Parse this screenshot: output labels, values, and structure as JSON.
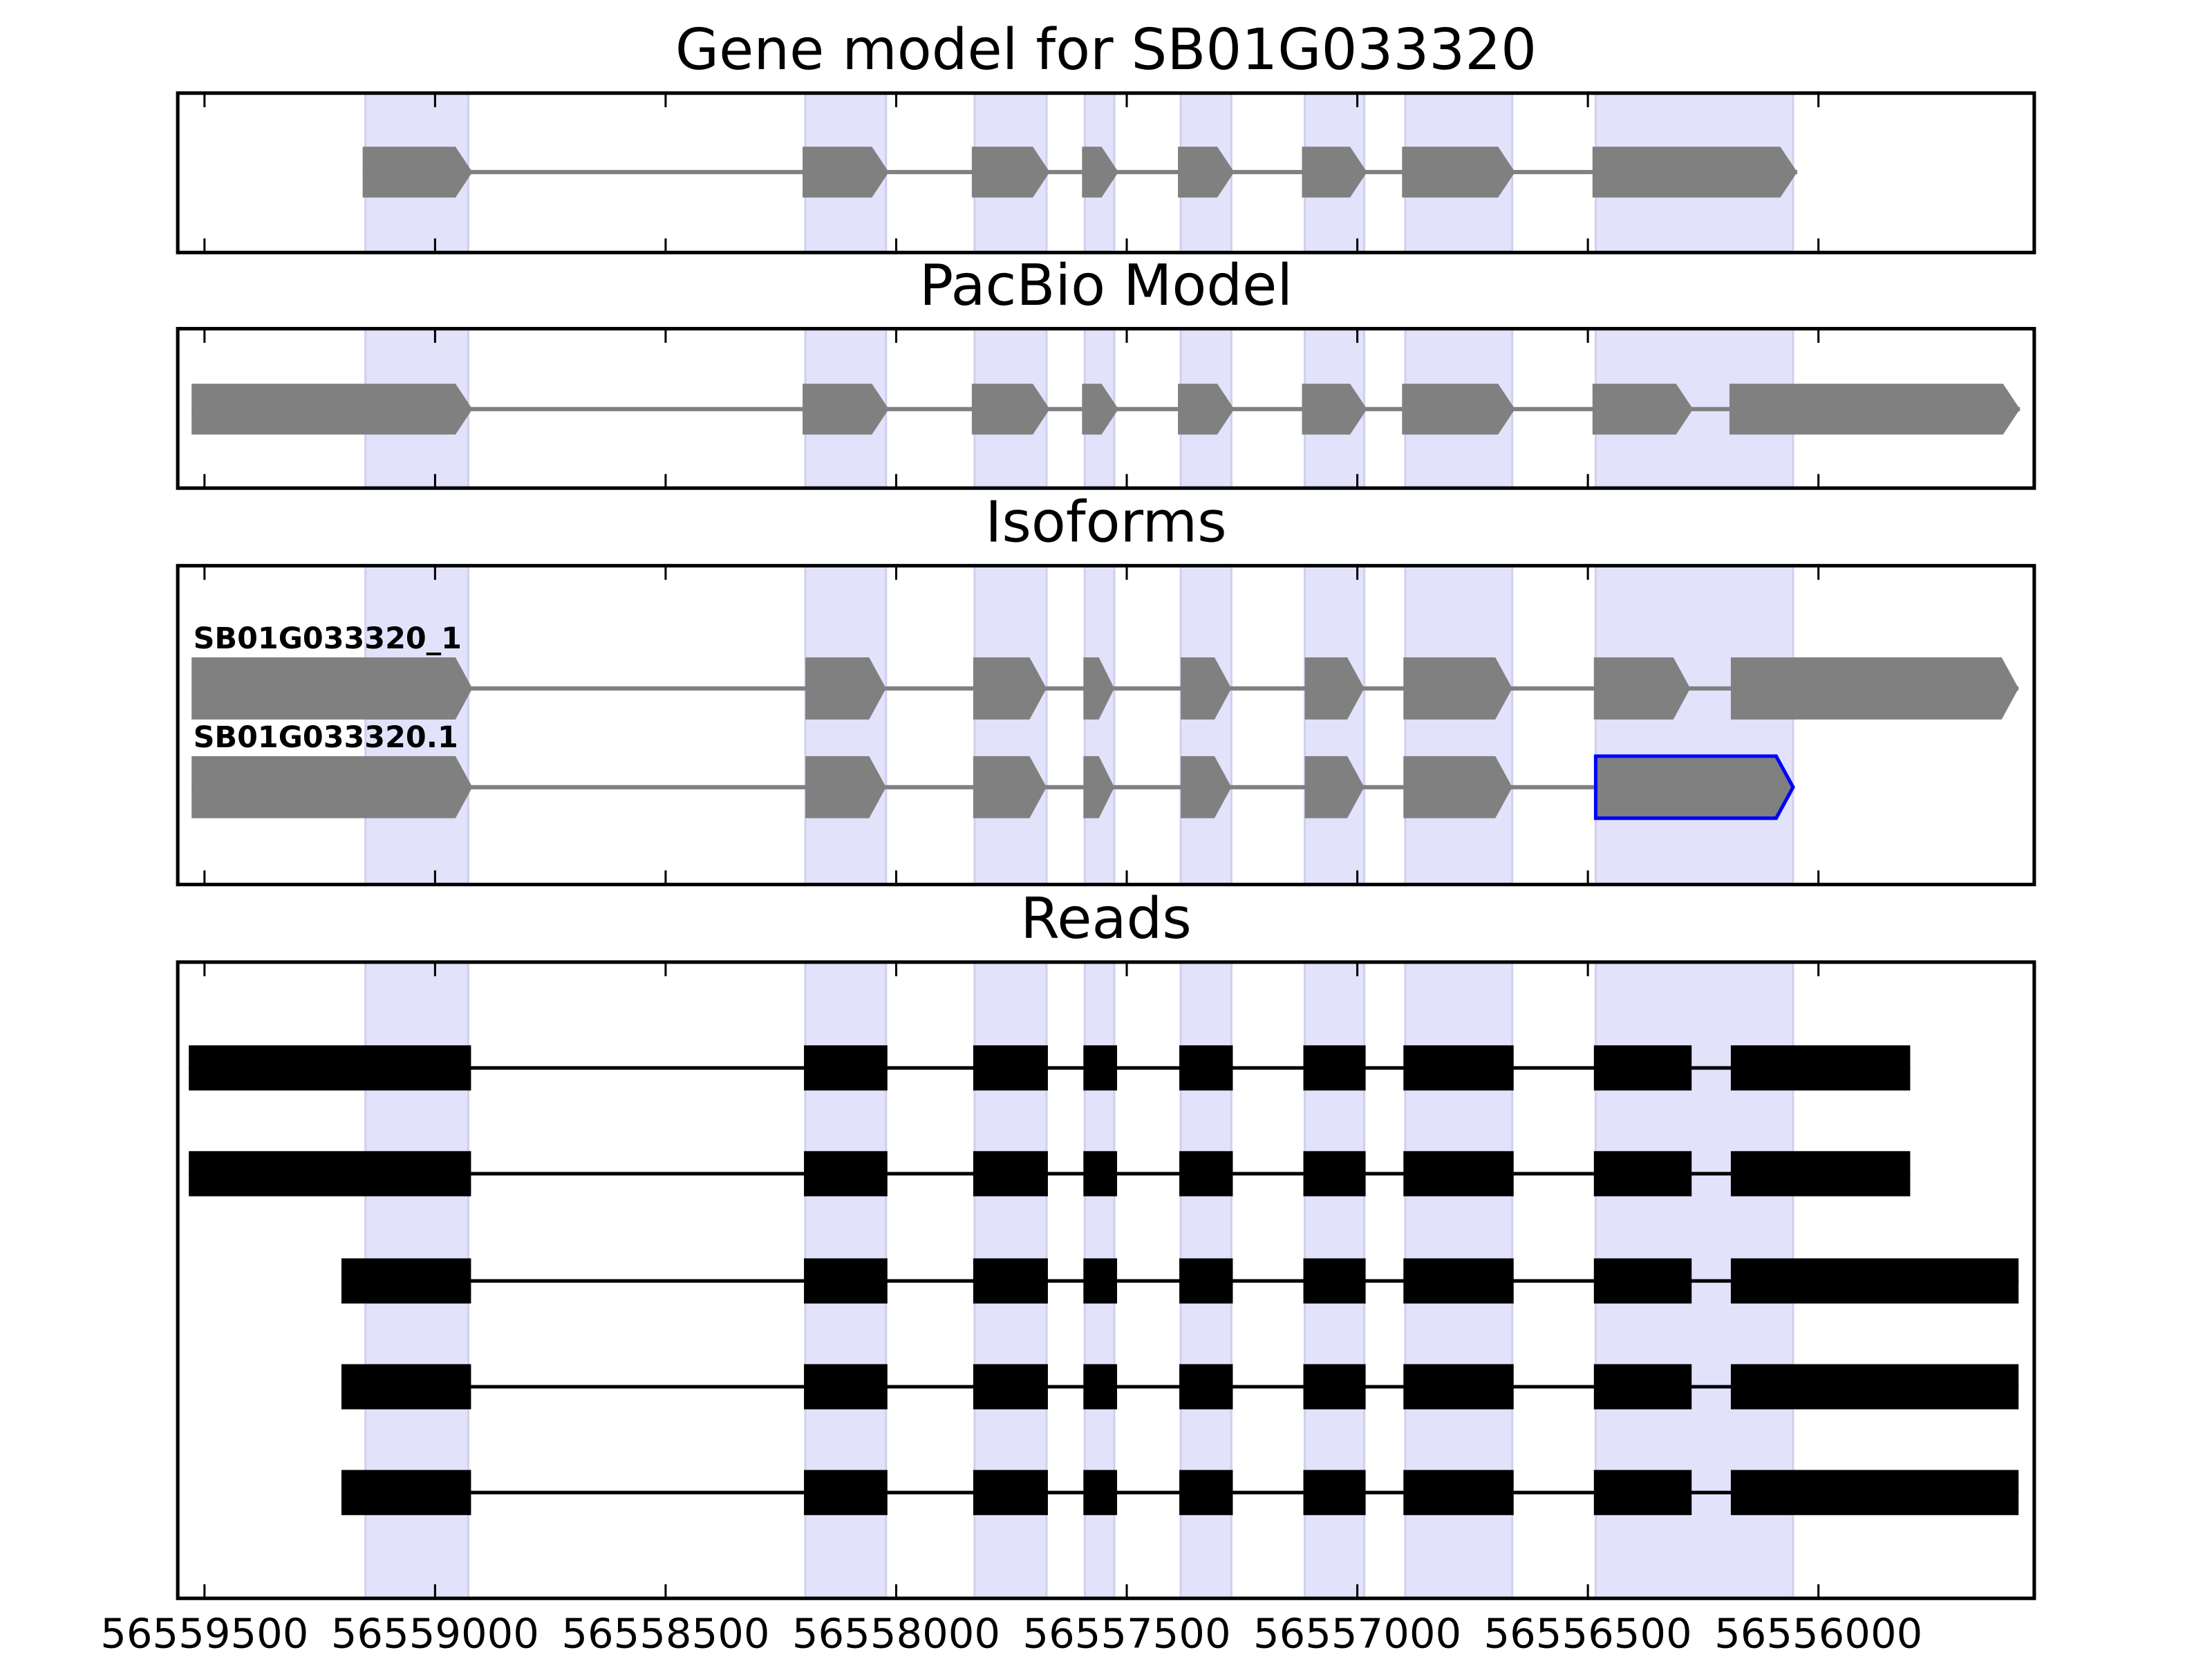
{
  "chart_data": [
    {
      "type": "gene_track",
      "title": "Gene model for SB01G033320",
      "xlim": [
        56559558,
        56555532
      ],
      "style": "arrow",
      "color": "#808080",
      "highlights": [
        [
          56559151,
          56558928
        ],
        [
          56558197,
          56558022
        ],
        [
          56557830,
          56557674
        ],
        [
          56557591,
          56557527
        ],
        [
          56557383,
          56557273
        ],
        [
          56557114,
          56556985
        ],
        [
          56556896,
          56556664
        ],
        [
          56556483,
          56556055
        ]
      ],
      "tracks": [
        {
          "exons": [
            [
              56559157,
              56558919
            ],
            [
              56558203,
              56558016
            ],
            [
              56557836,
              56557667
            ],
            [
              56557597,
              56557518
            ],
            [
              56557389,
              56557267
            ],
            [
              56557120,
              56556979
            ],
            [
              56556903,
              56556658
            ],
            [
              56556490,
              56556046
            ]
          ]
        }
      ]
    },
    {
      "type": "gene_track",
      "title": "PacBio Model",
      "xlim": [
        56559558,
        56555532
      ],
      "style": "arrow",
      "color": "#808080",
      "highlights": [
        [
          56559151,
          56558928
        ],
        [
          56558197,
          56558022
        ],
        [
          56557830,
          56557674
        ],
        [
          56557591,
          56557527
        ],
        [
          56557383,
          56557273
        ],
        [
          56557114,
          56556985
        ],
        [
          56556896,
          56556664
        ],
        [
          56556483,
          56556055
        ]
      ],
      "tracks": [
        {
          "exons": [
            [
              56559528,
              56558919
            ],
            [
              56558203,
              56558016
            ],
            [
              56557836,
              56557667
            ],
            [
              56557597,
              56557518
            ],
            [
              56557389,
              56557267
            ],
            [
              56557120,
              56556979
            ],
            [
              56556903,
              56556658
            ],
            [
              56556490,
              56556272
            ],
            [
              56556193,
              56555563
            ]
          ]
        }
      ]
    },
    {
      "type": "gene_track",
      "title": "Isoforms",
      "xlim": [
        56559558,
        56555532
      ],
      "style": "arrow",
      "color": "#808080",
      "highlights": [
        [
          56559151,
          56558928
        ],
        [
          56558197,
          56558022
        ],
        [
          56557830,
          56557674
        ],
        [
          56557591,
          56557527
        ],
        [
          56557383,
          56557273
        ],
        [
          56557114,
          56556985
        ],
        [
          56556896,
          56556664
        ],
        [
          56556483,
          56556055
        ]
      ],
      "tracks": [
        {
          "name": "SB01G033320_1",
          "exons": [
            [
              56559528,
              56558919
            ],
            [
              56558197,
              56558022
            ],
            [
              56557833,
              56557674
            ],
            [
              56557594,
              56557527
            ],
            [
              56557383,
              56557273
            ],
            [
              56557114,
              56556985
            ],
            [
              56556900,
              56556664
            ],
            [
              56556487,
              56556278
            ],
            [
              56556190,
              56555566
            ]
          ]
        },
        {
          "name": "SB01G033320.1",
          "exons": [
            [
              56559528,
              56558919
            ],
            [
              56558197,
              56558022
            ],
            [
              56557833,
              56557674
            ],
            [
              56557594,
              56557527
            ],
            [
              56557383,
              56557273
            ],
            [
              56557114,
              56556985
            ],
            [
              56556900,
              56556664
            ],
            {
              "range": [
                56556483,
                56556055
              ],
              "fill": "#808080",
              "edgecolor": "#0000ff"
            }
          ]
        }
      ]
    },
    {
      "type": "gene_track",
      "title": "Reads",
      "xlim": [
        56559558,
        56555532
      ],
      "style": "block",
      "color": "#000000",
      "xticks": [
        56559500,
        56559000,
        56558500,
        56558000,
        56557500,
        56557000,
        56556500,
        56556000
      ],
      "highlights": [
        [
          56559151,
          56558928
        ],
        [
          56558197,
          56558022
        ],
        [
          56557830,
          56557674
        ],
        [
          56557591,
          56557527
        ],
        [
          56557383,
          56557273
        ],
        [
          56557114,
          56556985
        ],
        [
          56556896,
          56556664
        ],
        [
          56556483,
          56556055
        ]
      ],
      "tracks": [
        {
          "exons": [
            [
              56559534,
              56558922
            ],
            [
              56558200,
              56558019
            ],
            [
              56557833,
              56557671
            ],
            [
              56557594,
              56557521
            ],
            [
              56557386,
              56557270
            ],
            [
              56557117,
              56556982
            ],
            [
              56556900,
              56556661
            ],
            [
              56556487,
              56556275
            ],
            [
              56556190,
              56555801
            ]
          ]
        },
        {
          "exons": [
            [
              56559534,
              56558922
            ],
            [
              56558200,
              56558019
            ],
            [
              56557833,
              56557671
            ],
            [
              56557594,
              56557521
            ],
            [
              56557386,
              56557270
            ],
            [
              56557117,
              56556982
            ],
            [
              56556900,
              56556661
            ],
            [
              56556487,
              56556275
            ],
            [
              56556190,
              56555801
            ]
          ]
        },
        {
          "exons": [
            [
              56559203,
              56558922
            ],
            [
              56558200,
              56558019
            ],
            [
              56557833,
              56557671
            ],
            [
              56557594,
              56557521
            ],
            [
              56557386,
              56557270
            ],
            [
              56557117,
              56556982
            ],
            [
              56556900,
              56556661
            ],
            [
              56556487,
              56556275
            ],
            [
              56556190,
              56555566
            ]
          ]
        },
        {
          "exons": [
            [
              56559203,
              56558922
            ],
            [
              56558200,
              56558019
            ],
            [
              56557833,
              56557671
            ],
            [
              56557594,
              56557521
            ],
            [
              56557386,
              56557270
            ],
            [
              56557117,
              56556982
            ],
            [
              56556900,
              56556661
            ],
            [
              56556487,
              56556275
            ],
            [
              56556190,
              56555566
            ]
          ]
        },
        {
          "exons": [
            [
              56559203,
              56558922
            ],
            [
              56558200,
              56558019
            ],
            [
              56557833,
              56557671
            ],
            [
              56557594,
              56557521
            ],
            [
              56557386,
              56557270
            ],
            [
              56557117,
              56556982
            ],
            [
              56556900,
              56556661
            ],
            [
              56556487,
              56556275
            ],
            [
              56556190,
              56555566
            ]
          ]
        }
      ]
    }
  ]
}
